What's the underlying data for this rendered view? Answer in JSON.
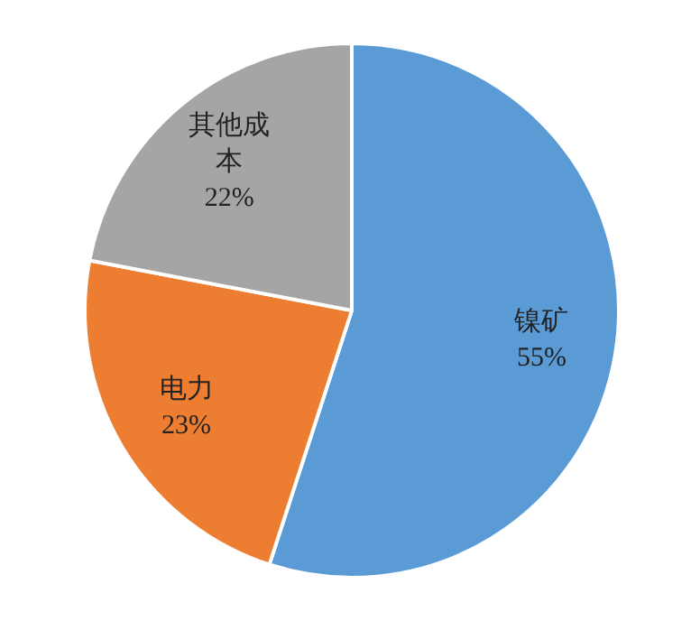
{
  "chart_data": {
    "type": "pie",
    "categories": [
      "镍矿",
      "电力",
      "其他成本"
    ],
    "values": [
      55,
      23,
      22
    ],
    "colors": [
      "#5b9bd5",
      "#ed7d31",
      "#a5a5a5"
    ],
    "value_labels": [
      "55%",
      "23%",
      "22%"
    ]
  }
}
